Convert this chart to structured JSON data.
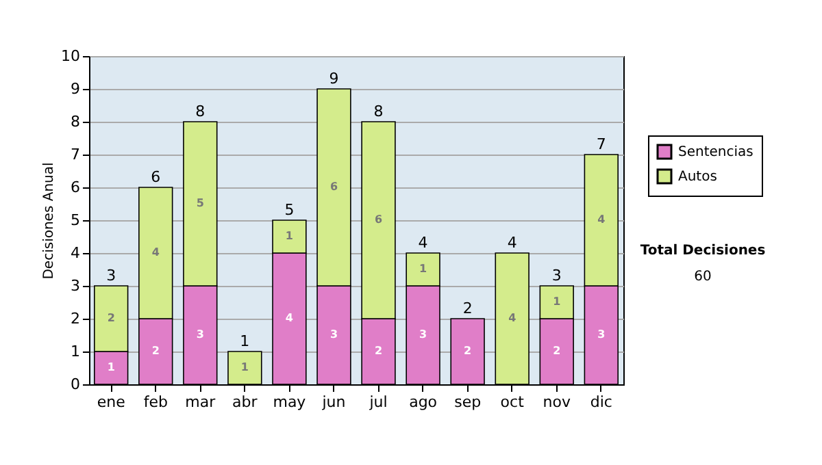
{
  "chart_data": {
    "type": "bar",
    "stacked": true,
    "ylabel": "Decisiones Anual",
    "categories": [
      "ene",
      "feb",
      "mar",
      "abr",
      "may",
      "jun",
      "jul",
      "ago",
      "sep",
      "oct",
      "nov",
      "dic"
    ],
    "series": [
      {
        "name": "Sentencias",
        "color": "#e07ec8",
        "values": [
          1,
          2,
          3,
          0,
          4,
          3,
          2,
          3,
          2,
          0,
          2,
          3
        ],
        "value_labels": [
          "1",
          "2",
          "3",
          null,
          "4",
          "3",
          "2",
          "3",
          "2",
          null,
          "2",
          "3"
        ]
      },
      {
        "name": "Autos",
        "color": "#d4ec8c",
        "values": [
          2,
          4,
          5,
          1,
          1,
          6,
          6,
          1,
          0,
          4,
          1,
          4
        ],
        "value_labels": [
          "2",
          "4",
          "5",
          "1",
          "1",
          "6",
          "6",
          "1",
          null,
          "4",
          "1",
          "4"
        ]
      }
    ],
    "totals": [
      "3",
      "6",
      "8",
      "1",
      "5",
      "9",
      "8",
      "4",
      "2",
      "4",
      "3",
      "7"
    ],
    "ylim": [
      0,
      10
    ],
    "yticks": [
      0,
      1,
      2,
      3,
      4,
      5,
      6,
      7,
      8,
      9,
      10
    ],
    "grid": "y",
    "legend": "right",
    "annotations": [
      "Total Decisiones",
      "60"
    ]
  }
}
